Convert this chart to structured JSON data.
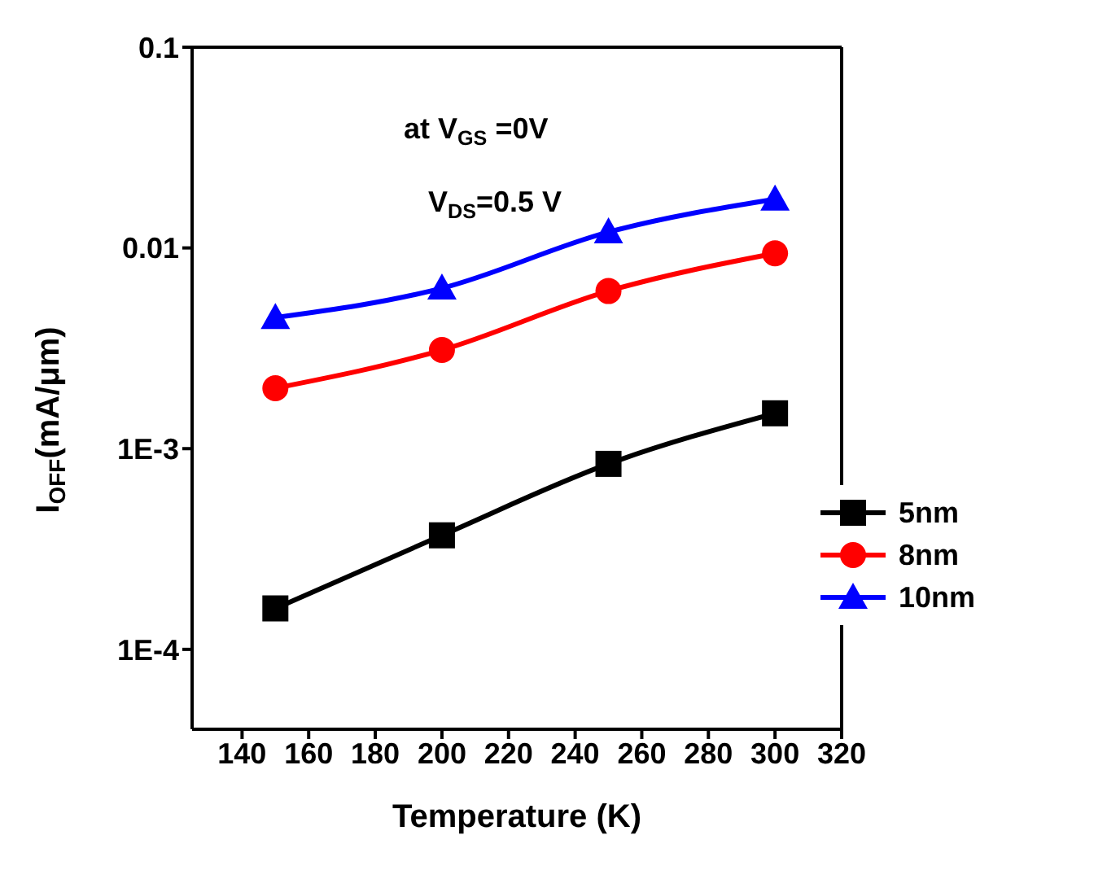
{
  "chart_data": {
    "type": "line",
    "xlabel": "Temperature (K)",
    "ylabel": "I$_{OFF}$(mA/μm)",
    "x": [
      150,
      200,
      250,
      300
    ],
    "series": [
      {
        "name": "5nm",
        "color": "#000000",
        "marker": "square",
        "values": [
          0.00016,
          0.00037,
          0.00084,
          0.0015
        ]
      },
      {
        "name": "8nm",
        "color": "#ff0000",
        "marker": "circle",
        "values": [
          0.002,
          0.0031,
          0.0061,
          0.0094
        ]
      },
      {
        "name": "10nm",
        "color": "#0000ff",
        "marker": "triangle",
        "values": [
          0.0045,
          0.0063,
          0.012,
          0.0175
        ]
      }
    ],
    "xlim": [
      125,
      320
    ],
    "xticks": [
      140,
      160,
      180,
      200,
      220,
      240,
      260,
      280,
      300,
      320
    ],
    "ylim": [
      4e-05,
      0.1
    ],
    "yticks": [
      {
        "value": 0.0001,
        "label": "1E-4"
      },
      {
        "value": 0.001,
        "label": "1E-3"
      },
      {
        "value": 0.01,
        "label": "0.01"
      },
      {
        "value": 0.1,
        "label": "0.1"
      }
    ],
    "log": "y",
    "grid": false,
    "legend": "right",
    "line_style": "solid",
    "annotations": [
      "at V$_{GS}$ =0V",
      "V$_{DS}$=0.5 V"
    ]
  }
}
